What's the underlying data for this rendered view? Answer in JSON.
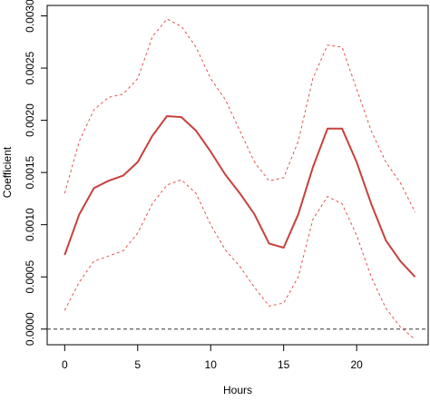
{
  "chart_data": {
    "type": "line",
    "x_label": "Hours",
    "y_label": "Coefficient",
    "x": [
      0,
      1,
      2,
      3,
      4,
      5,
      6,
      7,
      8,
      9,
      10,
      11,
      12,
      13,
      14,
      15,
      16,
      17,
      18,
      19,
      20,
      21,
      22,
      23,
      24
    ],
    "series": [
      {
        "color": "#c8403c",
        "linestyle": "solid",
        "values": [
          0.00071,
          0.0011,
          0.00135,
          0.00142,
          0.00147,
          0.0016,
          0.00185,
          0.00204,
          0.00203,
          0.0019,
          0.0017,
          0.00148,
          0.0013,
          0.0011,
          0.00082,
          0.00078,
          0.0011,
          0.00155,
          0.00192,
          0.00192,
          0.0016,
          0.0012,
          0.00085,
          0.00065,
          0.0005
        ]
      },
      {
        "color": "#e0554f",
        "linestyle": "dashed",
        "values": [
          0.0013,
          0.0018,
          0.0021,
          0.00222,
          0.00225,
          0.0024,
          0.0028,
          0.00297,
          0.0029,
          0.0027,
          0.0024,
          0.0022,
          0.0019,
          0.0016,
          0.00142,
          0.00145,
          0.0018,
          0.0024,
          0.00272,
          0.0027,
          0.0023,
          0.0019,
          0.0016,
          0.0014,
          0.00112
        ]
      },
      {
        "color": "#e0554f",
        "linestyle": "dashed",
        "values": [
          0.00018,
          0.00045,
          0.00065,
          0.0007,
          0.00075,
          0.00092,
          0.0012,
          0.00138,
          0.00143,
          0.0013,
          0.001,
          0.00076,
          0.0006,
          0.0004,
          0.00022,
          0.00025,
          0.0005,
          0.00105,
          0.00127,
          0.0012,
          0.0009,
          0.0005,
          0.0002,
          2e-05,
          -0.0001
        ]
      }
    ],
    "hline": 0,
    "xlim": [
      -1.2,
      24.9
    ],
    "ylim": [
      -0.00015,
      0.0031
    ],
    "xticks": [
      0,
      5,
      10,
      15,
      20
    ],
    "yticks": [
      {
        "value": 0,
        "label": "0.0000"
      },
      {
        "value": 0.0005,
        "label": "0.0005"
      },
      {
        "value": 0.001,
        "label": "0.0010"
      },
      {
        "value": 0.0015,
        "label": "0.0015"
      },
      {
        "value": 0.002,
        "label": "0.0020"
      },
      {
        "value": 0.0025,
        "label": "0.0025"
      },
      {
        "value": 0.003,
        "label": "0.0030"
      }
    ]
  }
}
